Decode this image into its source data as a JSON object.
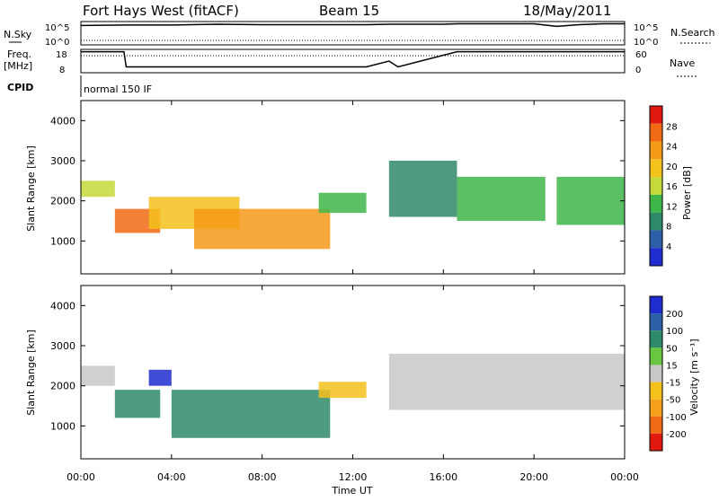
{
  "header": {
    "station": "Fort Hays West (fitACF)",
    "beam": "Beam 15",
    "date": "18/May/2011"
  },
  "left_labels": {
    "nsky": "N.Sky",
    "freq": "Freq.",
    "freq_unit": "[MHz]",
    "cpid": "CPID",
    "cpid_value": "normal 150 IF"
  },
  "right_labels": {
    "nsearch": "N.Search",
    "nave": "Nave"
  },
  "noise_panel": {
    "left_ticks": [
      "10^5",
      "10^0"
    ],
    "right_ticks": [
      "10^5",
      "10^0"
    ]
  },
  "freq_panel": {
    "left_ticks": [
      "18",
      "8"
    ],
    "right_ticks": [
      "60",
      "0"
    ]
  },
  "x_axis": {
    "ticks": [
      "00:00",
      "04:00",
      "08:00",
      "12:00",
      "16:00",
      "20:00",
      "00:00"
    ],
    "label": "Time UT"
  },
  "power_panel": {
    "ylabel": "Slant Range [km]",
    "yticks": [
      "1000",
      "2000",
      "3000",
      "4000"
    ],
    "colorbar_label": "Power [dB]",
    "colorbar_ticks": [
      "4",
      "8",
      "12",
      "16",
      "20",
      "24",
      "28"
    ],
    "colors": [
      "#1f2ccf",
      "#2d5fa8",
      "#2f8a6a",
      "#3fb64a",
      "#c6d93a",
      "#f5c11c",
      "#f59a18",
      "#f06a14",
      "#e11a10"
    ]
  },
  "velocity_panel": {
    "ylabel": "Slant Range [km]",
    "yticks": [
      "1000",
      "2000",
      "3000",
      "4000"
    ],
    "colorbar_label": "Velocity [m s⁻¹]",
    "colorbar_ticks": [
      "200",
      "100",
      "50",
      "15",
      "-15",
      "-50",
      "-100",
      "-200"
    ],
    "colors": [
      "#1f2ccf",
      "#2d5fa8",
      "#2f8a6a",
      "#69c640",
      "#c8c8c8",
      "#f5c11c",
      "#f5a01a",
      "#f06a14",
      "#e11a10"
    ]
  },
  "chart_data": [
    {
      "type": "line",
      "panel": "noise",
      "x": [
        0,
        2,
        4,
        6,
        8,
        10,
        12.6,
        13.6,
        16,
        16.6,
        20,
        21,
        22,
        23,
        24
      ],
      "series": [
        {
          "name": "N.Sky",
          "values": [
            4.5,
            4.6,
            4.6,
            4.8,
            4.7,
            4.7,
            4.7,
            4.8,
            4.8,
            4.9,
            4.9,
            4.3,
            4.7,
            4.9,
            4.9
          ]
        }
      ],
      "xlim": [
        0,
        24
      ]
    },
    {
      "type": "line",
      "panel": "frequency",
      "x": [
        0,
        1.9,
        2.0,
        12.6,
        13.6,
        14.0,
        16.6,
        24
      ],
      "series": [
        {
          "name": "Freq.",
          "values": [
            17,
            17,
            10.5,
            10.5,
            13,
            10.5,
            17,
            17
          ]
        }
      ],
      "xlim": [
        0,
        24
      ],
      "ylim": [
        8,
        18
      ]
    },
    {
      "type": "heatmap",
      "panel": "power",
      "ylabel": "Slant Range [km]",
      "xlabel": "Time UT",
      "xlim": [
        0,
        24
      ],
      "ylim": [
        180,
        4500
      ],
      "colorbar": {
        "label": "Power [dB]",
        "range": [
          0,
          30
        ]
      },
      "patches": [
        {
          "t0": 0.0,
          "t1": 1.5,
          "r0": 2100,
          "r1": 2500,
          "value": 14
        },
        {
          "t0": 1.5,
          "t1": 3.5,
          "r0": 1200,
          "r1": 1800,
          "value": 26
        },
        {
          "t0": 3.0,
          "t1": 7.0,
          "r0": 1300,
          "r1": 2100,
          "value": 18
        },
        {
          "t0": 5.0,
          "t1": 11.0,
          "r0": 800,
          "r1": 1800,
          "value": 20
        },
        {
          "t0": 10.5,
          "t1": 12.6,
          "r0": 1700,
          "r1": 2200,
          "value": 10
        },
        {
          "t0": 13.6,
          "t1": 16.6,
          "r0": 1600,
          "r1": 3000,
          "value": 8
        },
        {
          "t0": 16.6,
          "t1": 20.5,
          "r0": 1500,
          "r1": 2600,
          "value": 10
        },
        {
          "t0": 21.0,
          "t1": 24.0,
          "r0": 1400,
          "r1": 2600,
          "value": 12
        }
      ]
    },
    {
      "type": "heatmap",
      "panel": "velocity",
      "ylabel": "Slant Range [km]",
      "xlabel": "Time UT",
      "xlim": [
        0,
        24
      ],
      "ylim": [
        180,
        4500
      ],
      "colorbar": {
        "label": "Velocity [m s⁻¹]",
        "range": [
          -200,
          200
        ]
      },
      "patches": [
        {
          "t0": 0.0,
          "t1": 1.5,
          "r0": 2000,
          "r1": 2500,
          "value": 0
        },
        {
          "t0": 1.5,
          "t1": 3.5,
          "r0": 1200,
          "r1": 1900,
          "value": -70
        },
        {
          "t0": 3.0,
          "t1": 4.0,
          "r0": 2000,
          "r1": 2400,
          "value": -200
        },
        {
          "t0": 4.0,
          "t1": 11.0,
          "r0": 700,
          "r1": 1900,
          "value": -70
        },
        {
          "t0": 10.5,
          "t1": 12.6,
          "r0": 1700,
          "r1": 2100,
          "value": 40
        },
        {
          "t0": 13.6,
          "t1": 24.0,
          "r0": 1400,
          "r1": 2800,
          "value": 0
        }
      ]
    }
  ]
}
